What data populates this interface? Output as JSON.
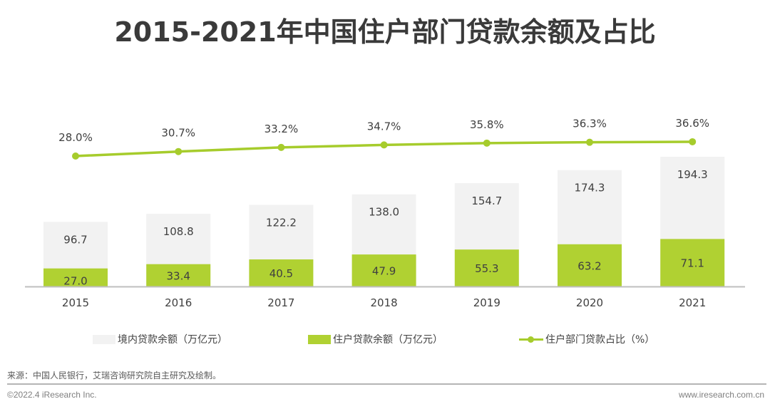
{
  "title": "2015-2021年中国住户部门贷款余额及占比",
  "chart_data": {
    "type": "bar",
    "title": "2015-2021年中国住户部门贷款余额及占比",
    "categories": [
      "2015",
      "2016",
      "2017",
      "2018",
      "2019",
      "2020",
      "2021"
    ],
    "series": [
      {
        "name": "境内贷款余额（万亿元）",
        "kind": "bar",
        "color": "#f2f2f2",
        "values": [
          96.7,
          108.8,
          122.2,
          138.0,
          154.7,
          174.3,
          194.3
        ],
        "labels": [
          "96.7",
          "108.8",
          "122.2",
          "138.0",
          "154.7",
          "174.3",
          "194.3"
        ]
      },
      {
        "name": "住户贷款余额（万亿元）",
        "kind": "bar",
        "color": "#b0d132",
        "values": [
          27.0,
          33.4,
          40.5,
          47.9,
          55.3,
          63.2,
          71.1
        ],
        "labels": [
          "27.0",
          "33.4",
          "40.5",
          "47.9",
          "55.3",
          "63.2",
          "71.1"
        ]
      },
      {
        "name": "住户部门贷款占比（%）",
        "kind": "line",
        "color": "#a6cc2c",
        "values": [
          28.0,
          30.7,
          33.2,
          34.7,
          35.8,
          36.3,
          36.6
        ],
        "labels": [
          "28.0%",
          "30.7%",
          "33.2%",
          "34.7%",
          "35.8%",
          "36.3%",
          "36.6%"
        ]
      }
    ],
    "bar_overlap": "overlaid (green bar drawn in front of grey total bar)",
    "xlabel": "",
    "ylabel": "",
    "ylim": [
      0,
      194.3
    ],
    "grid": false,
    "legend_position": "bottom",
    "axis_color": "#bfbfbf"
  },
  "legend": {
    "items": [
      {
        "label": "境内贷款余额（万亿元）"
      },
      {
        "label": "住户贷款余额（万亿元）"
      },
      {
        "label": "住户部门贷款占比（%）"
      }
    ]
  },
  "source": "来源：中国人民银行，艾瑞咨询研究院自主研究及绘制。",
  "footer": {
    "copyright": "©2022.4 iResearch Inc.",
    "website": "www.iresearch.com.cn"
  }
}
